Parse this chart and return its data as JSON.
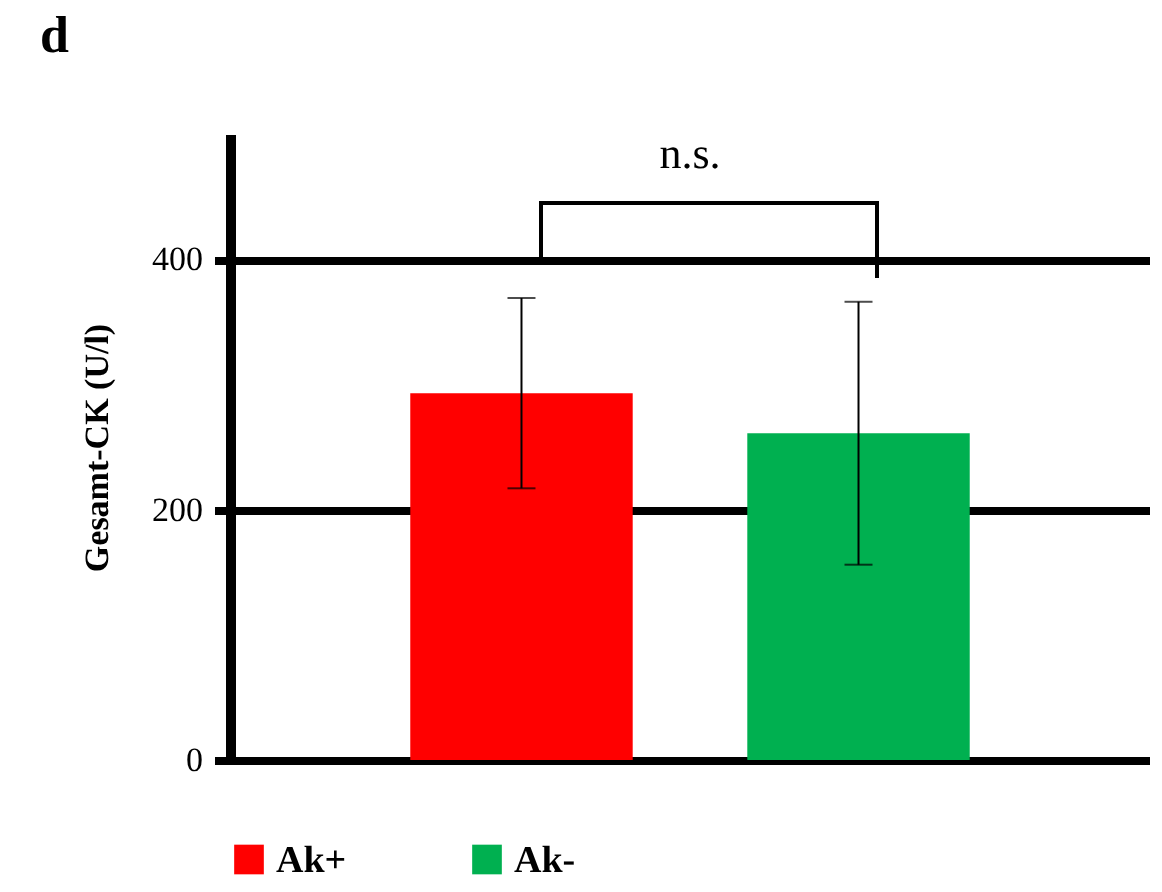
{
  "chart_data": {
    "type": "bar",
    "title": "d",
    "ylabel": "Gesamt-CK (U/l)",
    "categories": [
      null
    ],
    "series": [
      {
        "name": "Ak+",
        "color": "#ff0000",
        "values": [
          293
        ],
        "errors": [
          76
        ]
      },
      {
        "name": "Ak-",
        "color": "#00b050",
        "values": [
          261
        ],
        "errors": [
          105
        ]
      }
    ],
    "ylim": [
      0,
      500
    ],
    "yticks": [
      0,
      200,
      400
    ],
    "grid": "y",
    "legend": "bottom",
    "annotations": [
      "n.s."
    ]
  }
}
